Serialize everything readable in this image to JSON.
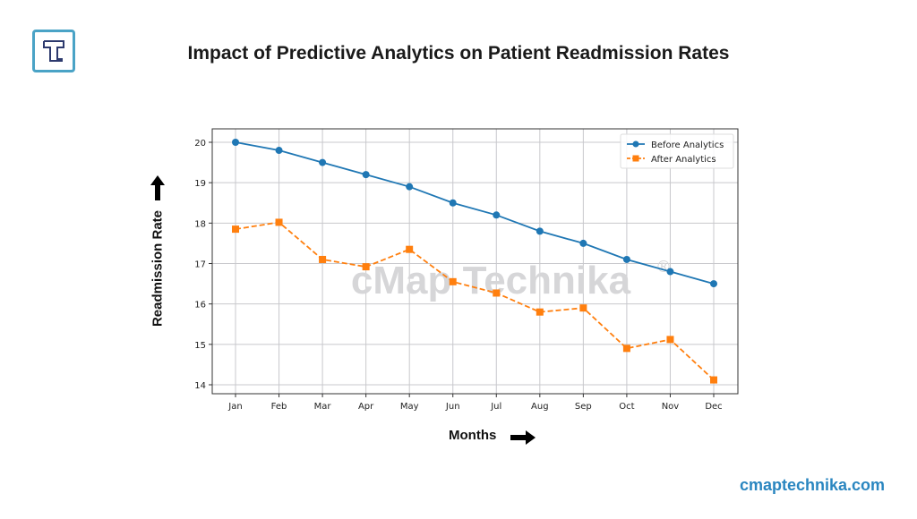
{
  "brand": {
    "logo_icon": "t-letter-logo-icon",
    "website": "cmaptechnika.com",
    "watermark": "cMap Technika",
    "watermark_mark": "®"
  },
  "colors": {
    "before": "#1f77b4",
    "after": "#ff7f0e",
    "logo_border": "#4aa3c6",
    "logo_glyph": "#2d3a6e",
    "website": "#2a86c0"
  },
  "labels": {
    "y_axis": "Readmission Rate",
    "x_axis": "Months",
    "y_arrow_icon": "arrow-up-icon",
    "x_arrow_icon": "arrow-right-icon"
  },
  "chart_data": {
    "type": "line",
    "title": "Impact of Predictive Analytics on Patient Readmission Rates",
    "xlabel": "Months",
    "ylabel": "Readmission Rate",
    "categories": [
      "Jan",
      "Feb",
      "Mar",
      "Apr",
      "May",
      "Jun",
      "Jul",
      "Aug",
      "Sep",
      "Oct",
      "Nov",
      "Dec"
    ],
    "series": [
      {
        "name": "Before Analytics",
        "marker": "circle",
        "line": "solid",
        "values": [
          20.0,
          19.8,
          19.5,
          19.2,
          18.9,
          18.5,
          18.2,
          17.8,
          17.5,
          17.1,
          16.8,
          16.5
        ]
      },
      {
        "name": "After Analytics",
        "marker": "square",
        "line": "dashed",
        "values": [
          17.85,
          18.02,
          17.1,
          16.92,
          17.35,
          16.55,
          16.27,
          15.8,
          15.9,
          14.9,
          15.12,
          14.12
        ]
      }
    ],
    "yticks": [
      14,
      15,
      16,
      17,
      18,
      19,
      20
    ],
    "ylim": [
      13.78,
      20.33
    ],
    "grid": true,
    "legend": "top-right"
  }
}
